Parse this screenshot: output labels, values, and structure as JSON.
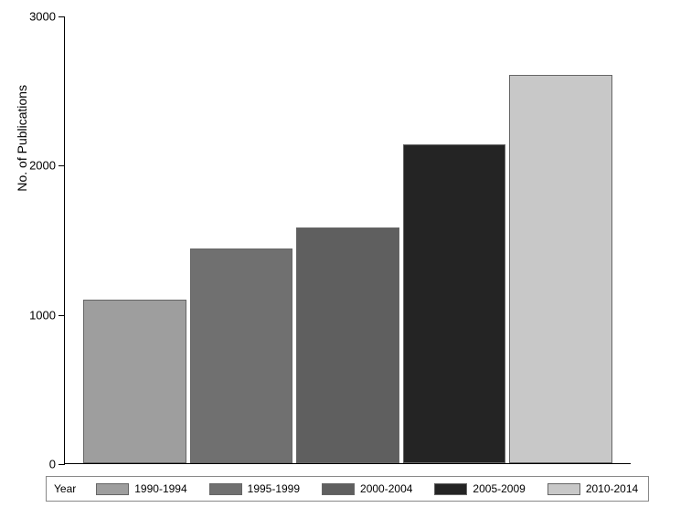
{
  "chart": {
    "type": "bar",
    "categories": [
      "1990-1994",
      "1995-1999",
      "2000-2004",
      "2005-2009",
      "2010-2014"
    ],
    "values": [
      1100,
      1440,
      1580,
      2140,
      2610
    ],
    "bar_colors": [
      "#9e9e9e",
      "#707070",
      "#5f5f5f",
      "#242424",
      "#c8c8c8"
    ],
    "ylabel": "No. of Publications",
    "ylim": [
      0,
      3000
    ],
    "yticks": [
      0,
      1000,
      2000,
      3000
    ],
    "label_fontsize": 14,
    "tick_fontsize": 13,
    "background_color": "#ffffff",
    "bar_border_color": "#666666",
    "axis_color": "#000000",
    "legend_title": "Year",
    "legend_border_color": "#888888"
  }
}
